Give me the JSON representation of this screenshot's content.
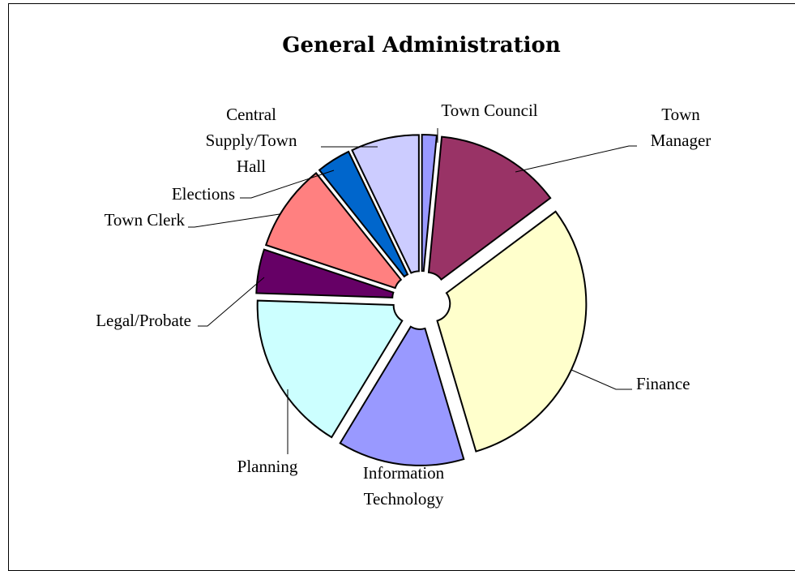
{
  "chart_data": {
    "type": "pie",
    "title": "General Administration",
    "exploded": true,
    "slices": [
      {
        "label": "Town Council",
        "value": 1.5,
        "color": "#9999ff"
      },
      {
        "label": "Town Manager",
        "value": 13,
        "color": "#993366"
      },
      {
        "label": "Finance",
        "value": 30,
        "color": "#ffffcc"
      },
      {
        "label": "Information Technology",
        "value": 13,
        "color": "#9999ff"
      },
      {
        "label": "Planning",
        "value": 16.5,
        "color": "#ccffff"
      },
      {
        "label": "Legal/Probate",
        "value": 4.5,
        "color": "#660066"
      },
      {
        "label": "Town Clerk",
        "value": 9,
        "color": "#ff8080"
      },
      {
        "label": "Elections",
        "value": 3.5,
        "color": "#0066cc"
      },
      {
        "label": "Central Supply/Town Hall",
        "value": 7,
        "color": "#ccccff"
      }
    ],
    "legend": "none",
    "data_labels": "category names with leader lines"
  }
}
